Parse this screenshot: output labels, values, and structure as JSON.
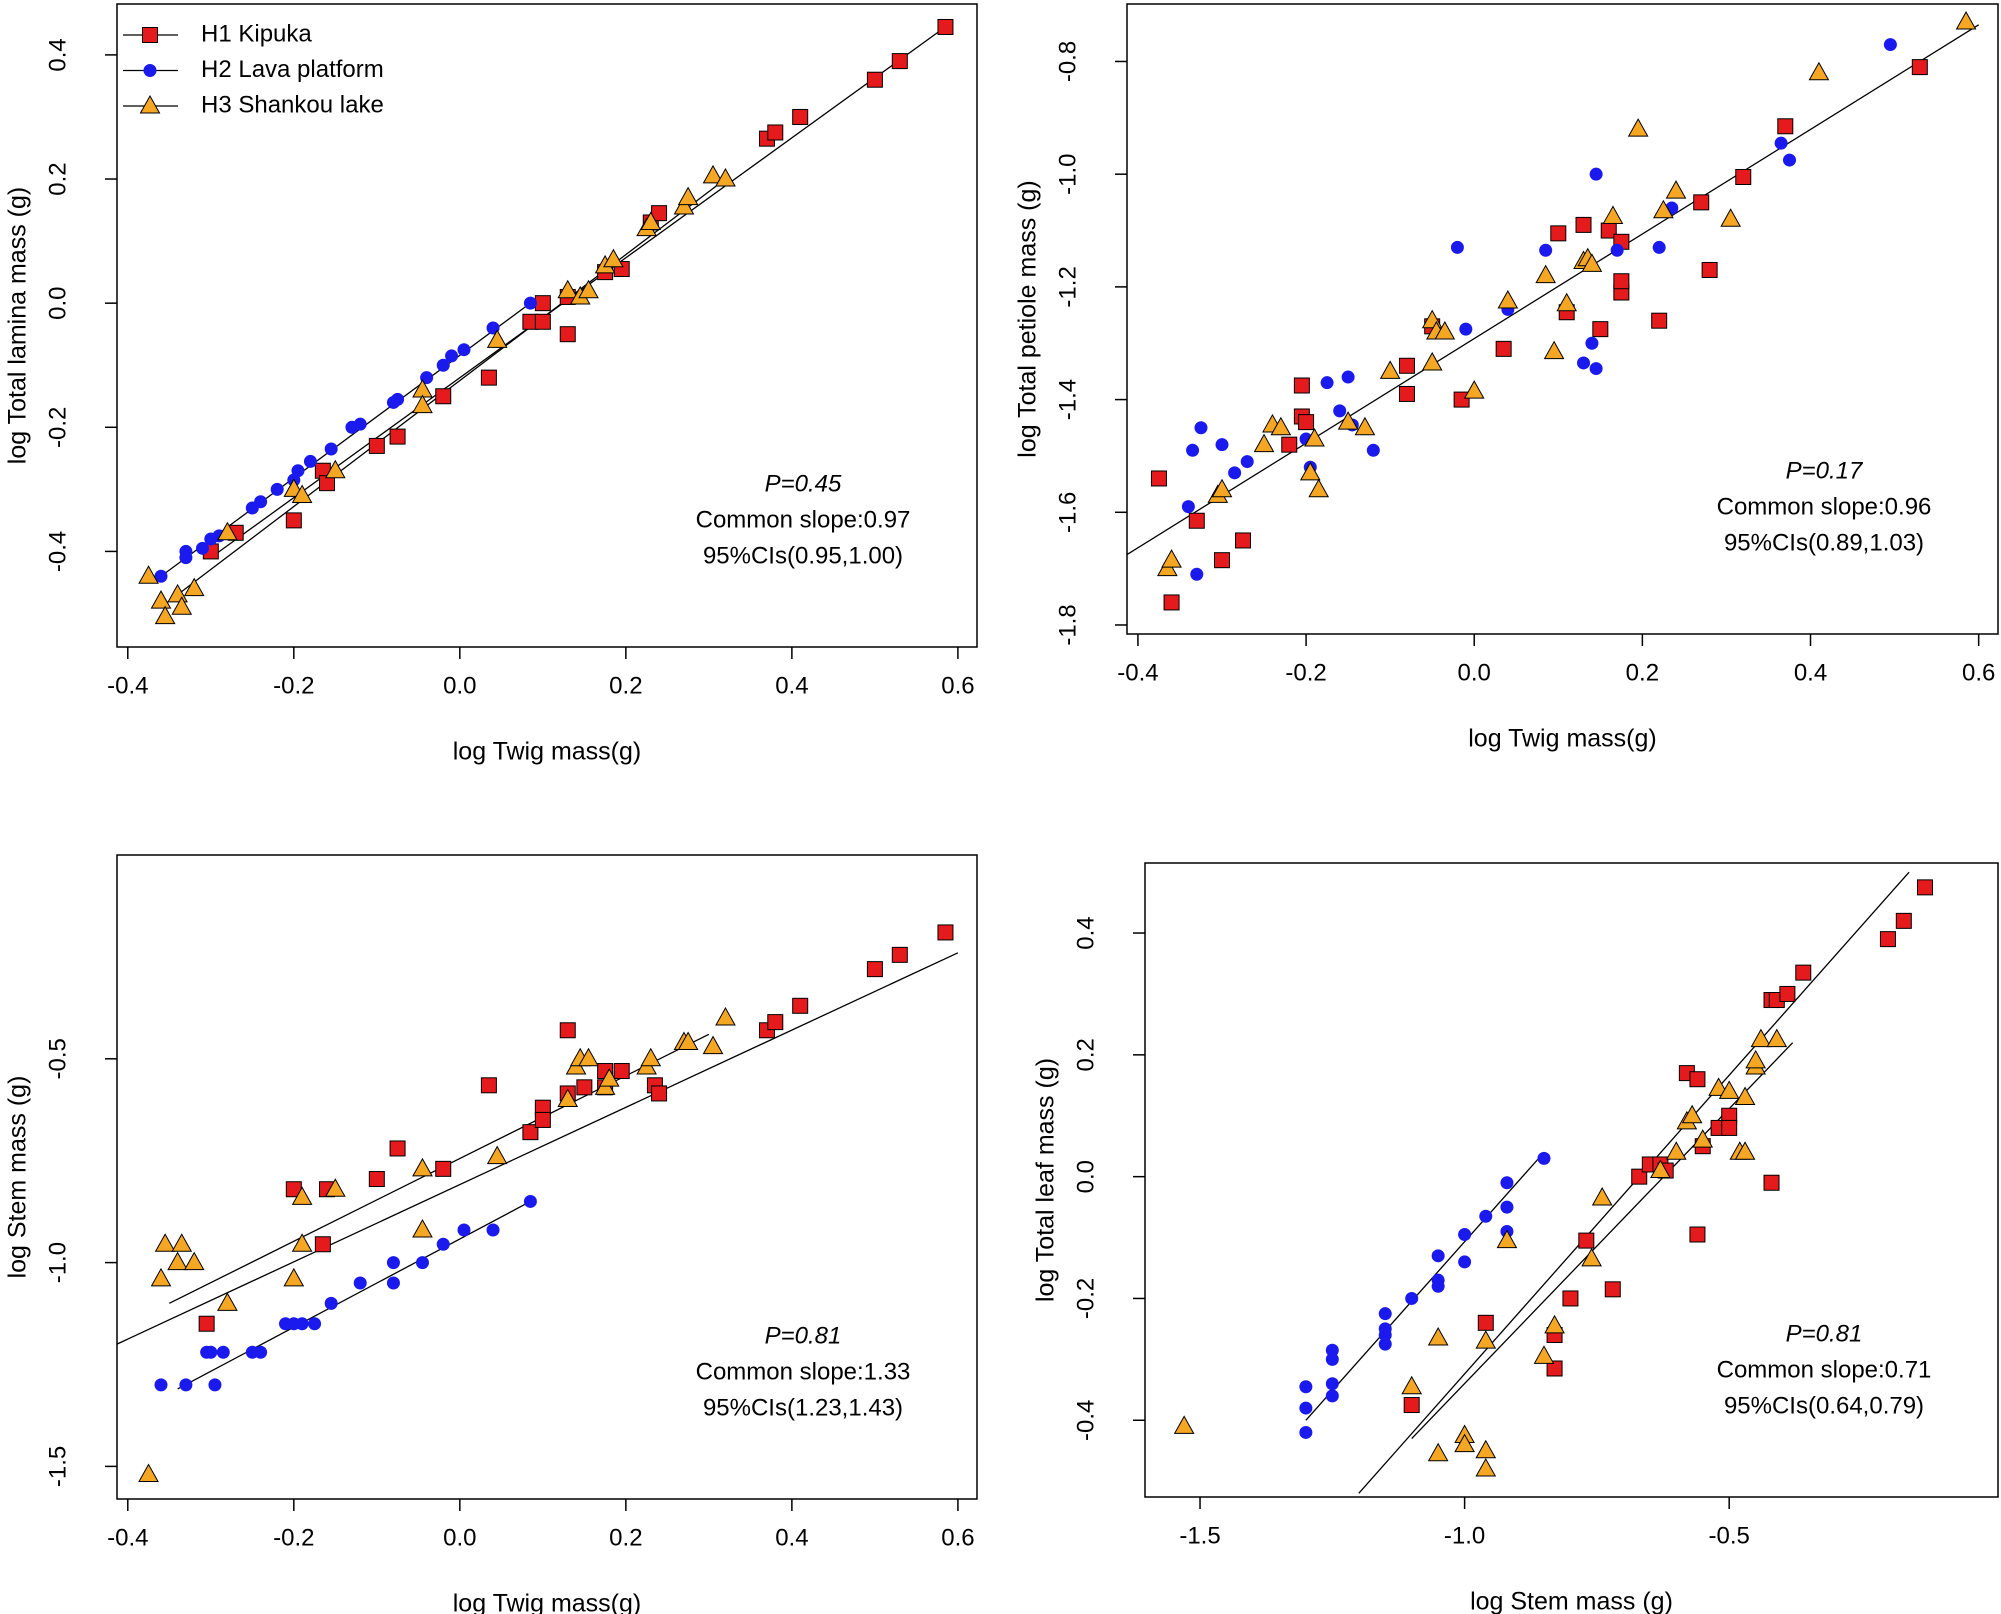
{
  "chart_data": [
    {
      "type": "scatter",
      "xlabel": "log Twig mass(g)",
      "ylabel": "log Total lamina mass (g)",
      "xlim": [
        -0.413,
        0.623
      ],
      "ylim": [
        -0.554,
        0.482
      ],
      "xticks": [
        -0.4,
        -0.2,
        {
          "value": 0,
          "label": "0.0"
        },
        0.2,
        0.4,
        0.6
      ],
      "yticks": [
        -0.4,
        -0.2,
        {
          "value": 0,
          "label": "0.0"
        },
        0.2,
        0.4
      ],
      "legend": "top-left",
      "annotations": [
        "P=0.45",
        "Common slope:0.97",
        "95%CIs(0.95,1.00)"
      ],
      "series": [
        {
          "name": "H1 Kipuka",
          "color": "#e41a1c",
          "marker": "square",
          "x": [
            -0.3,
            -0.27,
            -0.2,
            -0.165,
            -0.16,
            -0.1,
            -0.075,
            -0.02,
            0.035,
            0.085,
            0.1,
            0.1,
            0.13,
            0.13,
            0.175,
            0.195,
            0.23,
            0.24,
            0.37,
            0.38,
            0.41,
            0.5,
            0.53,
            0.585
          ],
          "values": [
            -0.4,
            -0.37,
            -0.35,
            -0.27,
            -0.29,
            -0.23,
            -0.215,
            -0.15,
            -0.12,
            -0.03,
            -0.03,
            0.0,
            -0.05,
            0.01,
            0.05,
            0.055,
            0.13,
            0.145,
            0.265,
            0.275,
            0.3,
            0.36,
            0.39,
            0.445
          ]
        },
        {
          "name": "H2 Lava platform",
          "color": "#1a1aee",
          "marker": "circle",
          "x": [
            -0.36,
            -0.33,
            -0.33,
            -0.31,
            -0.3,
            -0.29,
            -0.25,
            -0.24,
            -0.22,
            -0.2,
            -0.195,
            -0.18,
            -0.155,
            -0.13,
            -0.12,
            -0.08,
            -0.075,
            -0.04,
            -0.02,
            -0.01,
            0.005,
            0.04,
            0.085
          ],
          "values": [
            -0.44,
            -0.4,
            -0.41,
            -0.395,
            -0.38,
            -0.375,
            -0.33,
            -0.32,
            -0.3,
            -0.285,
            -0.27,
            -0.255,
            -0.235,
            -0.2,
            -0.195,
            -0.16,
            -0.155,
            -0.12,
            -0.1,
            -0.085,
            -0.075,
            -0.04,
            0.0
          ]
        },
        {
          "name": "H3 Shankou lake",
          "color": "#f5a623",
          "marker": "triangle",
          "x": [
            -0.375,
            -0.36,
            -0.355,
            -0.34,
            -0.335,
            -0.32,
            -0.28,
            -0.2,
            -0.19,
            -0.15,
            -0.045,
            -0.045,
            0.045,
            0.13,
            0.145,
            0.155,
            0.175,
            0.185,
            0.225,
            0.23,
            0.27,
            0.275,
            0.305,
            0.32
          ],
          "values": [
            -0.44,
            -0.48,
            -0.505,
            -0.47,
            -0.49,
            -0.46,
            -0.37,
            -0.3,
            -0.31,
            -0.27,
            -0.14,
            -0.165,
            -0.06,
            0.02,
            0.01,
            0.02,
            0.06,
            0.07,
            0.12,
            0.13,
            0.155,
            0.17,
            0.205,
            0.2
          ]
        }
      ],
      "fits": [
        {
          "x": [
            -0.3,
            0.59
          ],
          "y": [
            -0.41,
            0.45
          ]
        },
        {
          "x": [
            -0.36,
            0.085
          ],
          "y": [
            -0.44,
            0.0
          ]
        },
        {
          "x": [
            -0.36,
            0.32
          ],
          "y": [
            -0.49,
            0.2
          ]
        }
      ]
    },
    {
      "type": "scatter",
      "xlabel": "log Twig mass(g)",
      "ylabel": "log Total petiole mass (g)",
      "xlim": [
        -0.413,
        0.623
      ],
      "ylim": [
        -1.816,
        -0.698
      ],
      "xticks": [
        -0.4,
        -0.2,
        {
          "value": 0,
          "label": "0.0"
        },
        0.2,
        0.4,
        0.6
      ],
      "yticks": [
        -1.8,
        -1.6,
        -1.4,
        -1.2,
        {
          "value": -1,
          "label": "-1.0"
        },
        -0.8
      ],
      "annotations": [
        "P=0.17",
        "Common slope:0.96",
        "95%CIs(0.89,1.03)"
      ],
      "series": [
        {
          "color": "#e41a1c",
          "marker": "square",
          "x": [
            -0.375,
            -0.36,
            -0.33,
            -0.3,
            -0.275,
            -0.22,
            -0.205,
            -0.205,
            -0.2,
            -0.08,
            -0.08,
            -0.015,
            -0.05,
            0.035,
            0.1,
            0.11,
            0.13,
            0.15,
            0.16,
            0.175,
            0.175,
            0.175,
            0.22,
            0.27,
            0.28,
            0.32,
            0.37,
            0.53
          ],
          "values": [
            -1.54,
            -1.76,
            -1.615,
            -1.685,
            -1.65,
            -1.48,
            -1.375,
            -1.43,
            -1.44,
            -1.39,
            -1.34,
            -1.4,
            -1.27,
            -1.31,
            -1.105,
            -1.245,
            -1.09,
            -1.275,
            -1.1,
            -1.21,
            -1.12,
            -1.19,
            -1.26,
            -1.05,
            -1.17,
            -1.005,
            -0.915,
            -0.81
          ]
        },
        {
          "color": "#1a1aee",
          "marker": "circle",
          "x": [
            -0.34,
            -0.335,
            -0.33,
            -0.325,
            -0.3,
            -0.285,
            -0.27,
            -0.2,
            -0.195,
            -0.175,
            -0.16,
            -0.15,
            -0.145,
            -0.12,
            -0.02,
            -0.01,
            0.04,
            0.085,
            0.13,
            0.14,
            0.145,
            0.145,
            0.17,
            0.22,
            0.235,
            0.365,
            0.375,
            0.495
          ],
          "values": [
            -1.59,
            -1.49,
            -1.71,
            -1.45,
            -1.48,
            -1.53,
            -1.51,
            -1.47,
            -1.52,
            -1.37,
            -1.42,
            -1.36,
            -1.445,
            -1.49,
            -1.13,
            -1.275,
            -1.24,
            -1.135,
            -1.335,
            -1.3,
            -1.345,
            -1.0,
            -1.135,
            -1.13,
            -1.06,
            -0.945,
            -0.975,
            -0.77
          ]
        },
        {
          "color": "#f5a623",
          "marker": "triangle",
          "x": [
            -0.365,
            -0.36,
            -0.305,
            -0.3,
            -0.25,
            -0.24,
            -0.23,
            -0.195,
            -0.19,
            -0.185,
            -0.15,
            -0.13,
            -0.1,
            -0.05,
            -0.05,
            -0.045,
            -0.035,
            0.0,
            0.04,
            0.085,
            0.095,
            0.11,
            0.13,
            0.135,
            0.14,
            0.165,
            0.195,
            0.225,
            0.24,
            0.305,
            0.41,
            0.585
          ],
          "values": [
            -1.7,
            -1.685,
            -1.57,
            -1.56,
            -1.48,
            -1.445,
            -1.45,
            -1.53,
            -1.47,
            -1.56,
            -1.44,
            -1.45,
            -1.35,
            -1.26,
            -1.335,
            -1.28,
            -1.28,
            -1.385,
            -1.225,
            -1.18,
            -1.315,
            -1.23,
            -1.155,
            -1.15,
            -1.16,
            -1.075,
            -0.92,
            -1.065,
            -1.03,
            -1.08,
            -0.82,
            -0.73
          ]
        }
      ],
      "fits": [
        {
          "x": [
            -0.413,
            0.6
          ],
          "y": [
            -1.675,
            -0.735
          ]
        }
      ]
    },
    {
      "type": "scatter",
      "xlabel": "log Twig mass(g)",
      "ylabel": "log Stem mass (g)",
      "xlim": [
        -0.413,
        0.623
      ],
      "ylim": [
        -1.58,
        0.0
      ],
      "xticks": [
        -0.4,
        -0.2,
        {
          "value": 0,
          "label": "0.0"
        },
        0.2,
        0.4,
        0.6
      ],
      "yticks": [
        -1.5,
        {
          "value": -1,
          "label": "-1.0"
        },
        -0.5
      ],
      "annotations": [
        "P=0.81",
        "Common slope:1.33",
        "95%CIs(1.23,1.43)"
      ],
      "series": [
        {
          "color": "#e41a1c",
          "marker": "square",
          "x": [
            -0.305,
            -0.2,
            -0.165,
            -0.16,
            -0.1,
            -0.075,
            -0.02,
            0.035,
            0.085,
            0.1,
            0.1,
            0.13,
            0.13,
            0.15,
            0.175,
            0.175,
            0.195,
            0.235,
            0.24,
            0.37,
            0.38,
            0.41,
            0.5,
            0.53,
            0.585
          ],
          "values": [
            -1.15,
            -0.82,
            -0.955,
            -0.82,
            -0.795,
            -0.72,
            -0.77,
            -0.565,
            -0.68,
            -0.62,
            -0.65,
            -0.585,
            -0.43,
            -0.57,
            -0.53,
            -0.57,
            -0.53,
            -0.565,
            -0.585,
            -0.43,
            -0.41,
            -0.37,
            -0.28,
            -0.245,
            -0.19
          ]
        },
        {
          "color": "#1a1aee",
          "marker": "circle",
          "x": [
            -0.36,
            -0.33,
            -0.305,
            -0.3,
            -0.295,
            -0.285,
            -0.25,
            -0.24,
            -0.21,
            -0.2,
            -0.19,
            -0.175,
            -0.155,
            -0.12,
            -0.08,
            -0.08,
            -0.045,
            -0.02,
            0.005,
            0.04,
            0.085
          ],
          "values": [
            -1.3,
            -1.3,
            -1.22,
            -1.22,
            -1.3,
            -1.22,
            -1.22,
            -1.22,
            -1.15,
            -1.15,
            -1.15,
            -1.15,
            -1.1,
            -1.05,
            -1.05,
            -1.0,
            -1.0,
            -0.955,
            -0.92,
            -0.92,
            -0.85
          ]
        },
        {
          "color": "#f5a623",
          "marker": "triangle",
          "x": [
            -0.375,
            -0.36,
            -0.355,
            -0.34,
            -0.335,
            -0.32,
            -0.28,
            -0.2,
            -0.19,
            -0.19,
            -0.15,
            -0.045,
            -0.045,
            0.045,
            0.13,
            0.14,
            0.145,
            0.155,
            0.175,
            0.18,
            0.225,
            0.23,
            0.27,
            0.275,
            0.305,
            0.32
          ],
          "values": [
            -1.52,
            -1.04,
            -0.955,
            -1.0,
            -0.955,
            -1.0,
            -1.1,
            -1.04,
            -0.955,
            -0.84,
            -0.82,
            -0.92,
            -0.77,
            -0.74,
            -0.6,
            -0.52,
            -0.5,
            -0.5,
            -0.57,
            -0.55,
            -0.52,
            -0.5,
            -0.46,
            -0.46,
            -0.47,
            -0.4
          ]
        }
      ],
      "fits": [
        {
          "x": [
            -0.413,
            0.6
          ],
          "y": [
            -1.2,
            -0.24
          ]
        },
        {
          "x": [
            -0.35,
            0.3
          ],
          "y": [
            -1.1,
            -0.44
          ]
        },
        {
          "x": [
            -0.34,
            0.085
          ],
          "y": [
            -1.31,
            -0.85
          ]
        }
      ]
    },
    {
      "type": "scatter",
      "xlabel": "log Stem mass (g)",
      "ylabel": "log Total leaf mass (g)",
      "xlim": [
        -1.604,
        0.008
      ],
      "ylim": [
        -0.526,
        0.515
      ],
      "xticks": [
        -1.5,
        {
          "value": -1,
          "label": "-1.0"
        },
        -0.5
      ],
      "yticks": [
        -0.4,
        -0.2,
        {
          "value": 0,
          "label": "0.0"
        },
        0.2,
        0.4
      ],
      "annotations": [
        "P=0.81",
        "Common slope:0.71",
        "95%CIs(0.64,0.79)"
      ],
      "series": [
        {
          "color": "#e41a1c",
          "marker": "square",
          "x": [
            -1.1,
            -0.96,
            -0.83,
            -0.83,
            -0.8,
            -0.72,
            -0.77,
            -0.67,
            -0.65,
            -0.63,
            -0.62,
            -0.58,
            -0.56,
            -0.56,
            -0.55,
            -0.52,
            -0.5,
            -0.5,
            -0.42,
            -0.42,
            -0.41,
            -0.39,
            -0.36,
            -0.2,
            -0.17,
            -0.13
          ],
          "values": [
            -0.375,
            -0.24,
            -0.26,
            -0.315,
            -0.2,
            -0.185,
            -0.105,
            0.0,
            0.02,
            0.02,
            0.01,
            0.17,
            0.16,
            -0.095,
            0.05,
            0.08,
            0.1,
            0.08,
            -0.01,
            0.29,
            0.29,
            0.3,
            0.335,
            0.39,
            0.42,
            0.475
          ]
        },
        {
          "color": "#1a1aee",
          "marker": "circle",
          "x": [
            -1.3,
            -1.3,
            -1.3,
            -1.25,
            -1.25,
            -1.25,
            -1.25,
            -1.15,
            -1.15,
            -1.15,
            -1.15,
            -1.1,
            -1.05,
            -1.05,
            -1.05,
            -1.0,
            -1.0,
            -0.96,
            -0.92,
            -0.92,
            -0.92,
            -0.85
          ],
          "values": [
            -0.42,
            -0.38,
            -0.345,
            -0.285,
            -0.3,
            -0.34,
            -0.36,
            -0.225,
            -0.25,
            -0.26,
            -0.275,
            -0.2,
            -0.13,
            -0.17,
            -0.18,
            -0.095,
            -0.14,
            -0.065,
            -0.01,
            -0.05,
            -0.09,
            0.03
          ]
        },
        {
          "color": "#f5a623",
          "marker": "triangle",
          "x": [
            -1.53,
            -1.1,
            -1.05,
            -1.05,
            -1.0,
            -1.0,
            -0.96,
            -0.96,
            -0.96,
            -0.92,
            -0.85,
            -0.83,
            -0.76,
            -0.74,
            -0.63,
            -0.6,
            -0.58,
            -0.57,
            -0.55,
            -0.52,
            -0.5,
            -0.48,
            -0.47,
            -0.47,
            -0.45,
            -0.45,
            -0.44,
            -0.41
          ],
          "values": [
            -0.41,
            -0.345,
            -0.455,
            -0.265,
            -0.425,
            -0.44,
            -0.45,
            -0.48,
            -0.27,
            -0.105,
            -0.295,
            -0.245,
            -0.135,
            -0.035,
            0.01,
            0.04,
            0.09,
            0.1,
            0.06,
            0.145,
            0.14,
            0.04,
            0.04,
            0.13,
            0.18,
            0.19,
            0.225,
            0.225
          ]
        }
      ],
      "fits": [
        {
          "x": [
            -1.2,
            -0.16
          ],
          "y": [
            -0.52,
            0.5
          ]
        },
        {
          "x": [
            -1.1,
            -0.38
          ],
          "y": [
            -0.43,
            0.22
          ]
        },
        {
          "x": [
            -1.3,
            -0.86
          ],
          "y": [
            -0.4,
            0.03
          ]
        }
      ]
    }
  ]
}
